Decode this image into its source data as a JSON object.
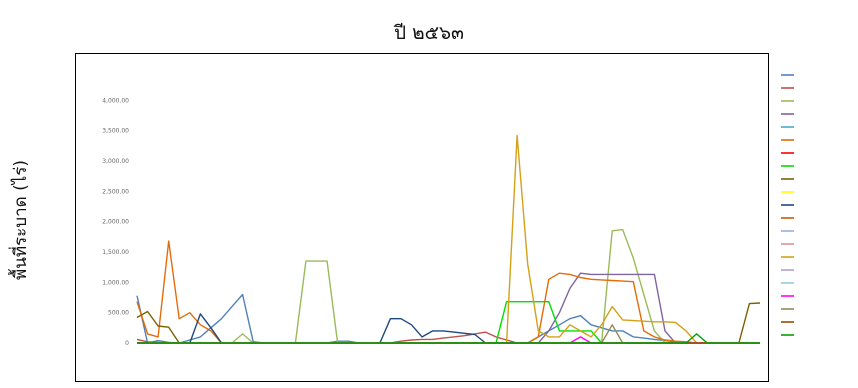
{
  "page": {
    "title": "ปี ๒๕๖๓",
    "y_title": "พื้นที่ระบาด (ไร่)"
  },
  "chart_data": {
    "type": "line",
    "title": "",
    "xlabel": "",
    "ylabel": "พื้นที่ระบาด (ไร่)",
    "ylim": [
      0,
      4500
    ],
    "y_ticks": [
      "0",
      "500.00",
      "1,000.00",
      "1,500.00",
      "2,000.00",
      "2,500.00",
      "3,000.00",
      "3,500.00",
      "4,000.00"
    ],
    "grid": false,
    "legend_position": "right",
    "x_count": 60,
    "categories": [
      "",
      "",
      "",
      "",
      "",
      "",
      "",
      "",
      "",
      "",
      "",
      "",
      "",
      "",
      "",
      "",
      "",
      "",
      "",
      "",
      "",
      "",
      "",
      "",
      "",
      "",
      "",
      "",
      "",
      "",
      "",
      "",
      "",
      "",
      "",
      "",
      "",
      "",
      "",
      "",
      "",
      "",
      "",
      "",
      "",
      "",
      "",
      "",
      "",
      "",
      "",
      "",
      "",
      "",
      "",
      "",
      "",
      "",
      "",
      ""
    ],
    "series": [
      {
        "color": "#4f81bd",
        "values": [
          780,
          0,
          40,
          10,
          0,
          50,
          100,
          250,
          400,
          600,
          800,
          20,
          0,
          0,
          0,
          0,
          0,
          0,
          0,
          30,
          30,
          0,
          0,
          0,
          0,
          0,
          0,
          0,
          0,
          0,
          0,
          0,
          0,
          0,
          0,
          0,
          0,
          0,
          100,
          200,
          300,
          400,
          450,
          300,
          250,
          200,
          200,
          100,
          80,
          60,
          40,
          20,
          10,
          0,
          0,
          0,
          0,
          0,
          0,
          0
        ]
      },
      {
        "color": "#c0504d",
        "values": [
          60,
          20,
          10,
          0,
          0,
          0,
          0,
          0,
          0,
          0,
          0,
          0,
          0,
          0,
          0,
          0,
          0,
          0,
          0,
          0,
          0,
          0,
          0,
          0,
          0,
          30,
          50,
          60,
          60,
          80,
          100,
          120,
          150,
          180,
          100,
          50,
          0,
          0,
          0,
          0,
          0,
          0,
          0,
          0,
          0,
          0,
          0,
          0,
          0,
          0,
          0,
          0,
          0,
          0,
          0,
          0,
          0,
          0,
          0,
          0
        ]
      },
      {
        "color": "#9bbb59",
        "values": [
          0,
          0,
          0,
          0,
          0,
          0,
          0,
          0,
          0,
          0,
          150,
          0,
          0,
          0,
          0,
          0,
          1350,
          1350,
          1350,
          0,
          0,
          0,
          0,
          0,
          0,
          0,
          0,
          0,
          0,
          0,
          0,
          0,
          0,
          0,
          0,
          0,
          0,
          0,
          0,
          0,
          0,
          0,
          0,
          0,
          0,
          1850,
          1870,
          1400,
          800,
          200,
          0,
          0,
          0,
          0,
          0,
          0,
          0,
          0,
          0,
          0
        ]
      },
      {
        "color": "#8064a2",
        "values": [
          0,
          0,
          0,
          0,
          0,
          0,
          0,
          0,
          0,
          0,
          0,
          0,
          0,
          0,
          0,
          0,
          0,
          0,
          0,
          0,
          0,
          0,
          0,
          0,
          0,
          0,
          0,
          0,
          0,
          0,
          0,
          0,
          0,
          0,
          0,
          0,
          0,
          0,
          0,
          200,
          500,
          900,
          1150,
          1130,
          1130,
          1130,
          1130,
          1130,
          1130,
          1130,
          200,
          0,
          0,
          0,
          0,
          0,
          0,
          0,
          0,
          0
        ]
      },
      {
        "color": "#4bacc6",
        "values": [
          0,
          0,
          0,
          0,
          0,
          0,
          0,
          0,
          0,
          0,
          0,
          0,
          0,
          0,
          0,
          0,
          0,
          0,
          0,
          0,
          0,
          0,
          0,
          0,
          0,
          0,
          0,
          0,
          0,
          0,
          0,
          0,
          0,
          0,
          0,
          0,
          0,
          0,
          0,
          0,
          0,
          0,
          0,
          0,
          0,
          0,
          0,
          0,
          0,
          0,
          0,
          0,
          0,
          0,
          0,
          0,
          0,
          0,
          0,
          0
        ]
      },
      {
        "color": "#e36c09",
        "values": [
          680,
          150,
          100,
          1680,
          400,
          500,
          300,
          200,
          0,
          0,
          0,
          0,
          0,
          0,
          0,
          0,
          0,
          0,
          0,
          0,
          0,
          0,
          0,
          0,
          0,
          0,
          0,
          0,
          0,
          0,
          0,
          0,
          0,
          0,
          0,
          0,
          0,
          0,
          100,
          1050,
          1150,
          1130,
          1080,
          1050,
          1040,
          1030,
          1020,
          1010,
          200,
          100,
          50,
          30,
          20,
          0,
          0,
          0,
          0,
          0,
          0,
          0
        ]
      },
      {
        "color": "#ff0000",
        "values": [
          0,
          0,
          0,
          0,
          0,
          0,
          0,
          0,
          0,
          0,
          0,
          0,
          0,
          0,
          0,
          0,
          0,
          0,
          0,
          0,
          0,
          0,
          0,
          0,
          0,
          0,
          0,
          0,
          0,
          0,
          0,
          0,
          0,
          0,
          0,
          0,
          0,
          0,
          0,
          0,
          0,
          0,
          0,
          0,
          0,
          0,
          0,
          0,
          0,
          0,
          0,
          0,
          0,
          0,
          0,
          0,
          0,
          0,
          0,
          0
        ]
      },
      {
        "color": "#00e000",
        "values": [
          0,
          0,
          0,
          0,
          0,
          0,
          0,
          0,
          0,
          0,
          0,
          0,
          0,
          0,
          0,
          0,
          0,
          0,
          0,
          0,
          0,
          0,
          0,
          0,
          0,
          0,
          0,
          0,
          0,
          0,
          0,
          0,
          0,
          0,
          0,
          680,
          680,
          680,
          680,
          680,
          200,
          200,
          200,
          200,
          0,
          0,
          0,
          0,
          0,
          0,
          0,
          0,
          0,
          0,
          0,
          0,
          0,
          0,
          0,
          0
        ]
      },
      {
        "color": "#7f6000",
        "values": [
          420,
          520,
          280,
          260,
          0,
          0,
          0,
          0,
          0,
          0,
          0,
          0,
          0,
          0,
          0,
          0,
          0,
          0,
          0,
          0,
          0,
          0,
          0,
          0,
          0,
          0,
          0,
          0,
          0,
          0,
          0,
          0,
          0,
          0,
          0,
          0,
          0,
          0,
          0,
          0,
          0,
          0,
          0,
          0,
          0,
          0,
          0,
          0,
          0,
          0,
          0,
          0,
          0,
          0,
          0,
          0,
          0,
          0,
          650,
          660
        ]
      },
      {
        "color": "#ffff00",
        "values": [
          0,
          0,
          0,
          0,
          0,
          0,
          0,
          0,
          0,
          0,
          0,
          0,
          0,
          0,
          0,
          0,
          0,
          0,
          0,
          0,
          0,
          0,
          0,
          0,
          0,
          0,
          0,
          0,
          0,
          0,
          0,
          0,
          0,
          0,
          0,
          0,
          0,
          0,
          0,
          0,
          0,
          0,
          0,
          0,
          0,
          0,
          0,
          0,
          0,
          0,
          0,
          0,
          0,
          0,
          0,
          0,
          0,
          0,
          0,
          0
        ]
      },
      {
        "color": "#1f497d",
        "values": [
          0,
          0,
          0,
          0,
          0,
          0,
          480,
          250,
          0,
          0,
          0,
          0,
          0,
          0,
          0,
          0,
          0,
          0,
          0,
          0,
          0,
          0,
          0,
          0,
          400,
          400,
          300,
          100,
          200,
          200,
          180,
          160,
          140,
          0,
          0,
          0,
          0,
          0,
          0,
          0,
          0,
          0,
          0,
          0,
          0,
          0,
          0,
          0,
          0,
          0,
          0,
          0,
          0,
          0,
          0,
          0,
          0,
          0,
          0,
          0
        ]
      },
      {
        "color": "#c55a11",
        "values": [
          0,
          0,
          0,
          0,
          0,
          0,
          0,
          0,
          0,
          0,
          0,
          0,
          0,
          0,
          0,
          0,
          0,
          0,
          0,
          0,
          0,
          0,
          0,
          0,
          0,
          0,
          0,
          0,
          0,
          0,
          0,
          0,
          0,
          0,
          0,
          0,
          0,
          0,
          0,
          0,
          0,
          0,
          0,
          0,
          0,
          0,
          0,
          0,
          0,
          0,
          0,
          0,
          0,
          0,
          0,
          0,
          0,
          0,
          0,
          0
        ]
      },
      {
        "color": "#95b3d7",
        "values": [
          0,
          0,
          0,
          0,
          0,
          0,
          0,
          0,
          0,
          0,
          0,
          0,
          0,
          0,
          0,
          0,
          0,
          0,
          0,
          0,
          0,
          0,
          0,
          0,
          0,
          0,
          0,
          0,
          0,
          0,
          0,
          0,
          0,
          0,
          0,
          0,
          0,
          0,
          0,
          0,
          0,
          0,
          0,
          0,
          0,
          0,
          0,
          0,
          0,
          0,
          0,
          0,
          0,
          0,
          0,
          0,
          0,
          0,
          0,
          0
        ]
      },
      {
        "color": "#d99694",
        "values": [
          0,
          0,
          0,
          0,
          0,
          0,
          0,
          0,
          0,
          0,
          0,
          0,
          0,
          0,
          0,
          0,
          0,
          0,
          0,
          0,
          0,
          0,
          0,
          0,
          0,
          0,
          0,
          0,
          0,
          0,
          0,
          0,
          0,
          0,
          0,
          0,
          0,
          0,
          0,
          0,
          0,
          0,
          0,
          0,
          0,
          0,
          0,
          0,
          0,
          0,
          0,
          0,
          0,
          0,
          0,
          0,
          0,
          0,
          0,
          0
        ]
      },
      {
        "color": "#d4a017",
        "values": [
          0,
          0,
          0,
          0,
          0,
          0,
          0,
          0,
          0,
          0,
          0,
          0,
          0,
          0,
          0,
          0,
          0,
          0,
          0,
          0,
          0,
          0,
          0,
          0,
          0,
          0,
          0,
          0,
          0,
          0,
          0,
          0,
          0,
          0,
          0,
          0,
          3420,
          1300,
          200,
          100,
          100,
          300,
          200,
          100,
          300,
          600,
          380,
          370,
          360,
          350,
          350,
          340,
          200,
          0,
          0,
          0,
          0,
          0,
          0,
          0
        ]
      },
      {
        "color": "#b2a1c7",
        "values": [
          0,
          0,
          0,
          0,
          0,
          0,
          0,
          0,
          0,
          0,
          0,
          0,
          0,
          0,
          0,
          0,
          0,
          0,
          0,
          0,
          0,
          0,
          0,
          0,
          0,
          0,
          0,
          0,
          0,
          0,
          0,
          0,
          0,
          0,
          0,
          0,
          0,
          0,
          0,
          0,
          0,
          0,
          0,
          0,
          0,
          0,
          0,
          0,
          0,
          0,
          0,
          0,
          0,
          0,
          0,
          0,
          0,
          0,
          0,
          0
        ]
      },
      {
        "color": "#93cddd",
        "values": [
          0,
          0,
          0,
          0,
          0,
          0,
          0,
          0,
          0,
          0,
          0,
          0,
          0,
          0,
          0,
          0,
          0,
          0,
          0,
          0,
          0,
          0,
          0,
          0,
          0,
          0,
          0,
          0,
          0,
          0,
          0,
          0,
          0,
          0,
          0,
          0,
          0,
          0,
          0,
          0,
          0,
          0,
          0,
          0,
          0,
          0,
          0,
          0,
          0,
          0,
          0,
          0,
          0,
          0,
          0,
          0,
          0,
          0,
          0,
          0
        ]
      },
      {
        "color": "#ff00ff",
        "values": [
          0,
          0,
          0,
          0,
          0,
          0,
          0,
          0,
          0,
          0,
          0,
          0,
          0,
          0,
          0,
          0,
          0,
          0,
          0,
          0,
          0,
          0,
          0,
          0,
          0,
          0,
          0,
          0,
          0,
          0,
          0,
          0,
          0,
          0,
          0,
          0,
          0,
          0,
          0,
          0,
          0,
          0,
          100,
          0,
          0,
          0,
          0,
          0,
          0,
          0,
          0,
          0,
          0,
          0,
          0,
          0,
          0,
          0,
          0,
          0
        ]
      },
      {
        "color": "#948a54",
        "values": [
          0,
          0,
          0,
          0,
          0,
          0,
          0,
          0,
          0,
          0,
          0,
          0,
          0,
          0,
          0,
          0,
          0,
          0,
          0,
          0,
          0,
          0,
          0,
          0,
          0,
          0,
          0,
          0,
          0,
          0,
          0,
          0,
          0,
          0,
          0,
          0,
          0,
          0,
          0,
          0,
          0,
          0,
          0,
          0,
          0,
          300,
          0,
          0,
          0,
          0,
          0,
          0,
          0,
          0,
          0,
          0,
          0,
          0,
          0,
          0
        ]
      },
      {
        "color": "#984806",
        "values": [
          0,
          0,
          0,
          0,
          0,
          0,
          0,
          0,
          0,
          0,
          0,
          0,
          0,
          0,
          0,
          0,
          0,
          0,
          0,
          0,
          0,
          0,
          0,
          0,
          0,
          0,
          0,
          0,
          0,
          0,
          0,
          0,
          0,
          0,
          0,
          0,
          0,
          0,
          0,
          0,
          0,
          0,
          0,
          0,
          0,
          0,
          0,
          0,
          0,
          0,
          0,
          0,
          0,
          0,
          0,
          0,
          0,
          0,
          0,
          0
        ]
      },
      {
        "color": "#00a000",
        "values": [
          0,
          0,
          0,
          0,
          0,
          0,
          0,
          0,
          0,
          0,
          0,
          0,
          0,
          0,
          0,
          0,
          0,
          0,
          0,
          0,
          0,
          0,
          0,
          0,
          0,
          0,
          0,
          0,
          0,
          0,
          0,
          0,
          0,
          0,
          0,
          0,
          0,
          0,
          0,
          0,
          0,
          0,
          0,
          0,
          0,
          0,
          0,
          0,
          0,
          0,
          0,
          0,
          0,
          150,
          0,
          0,
          0,
          0,
          0,
          0
        ]
      }
    ]
  }
}
